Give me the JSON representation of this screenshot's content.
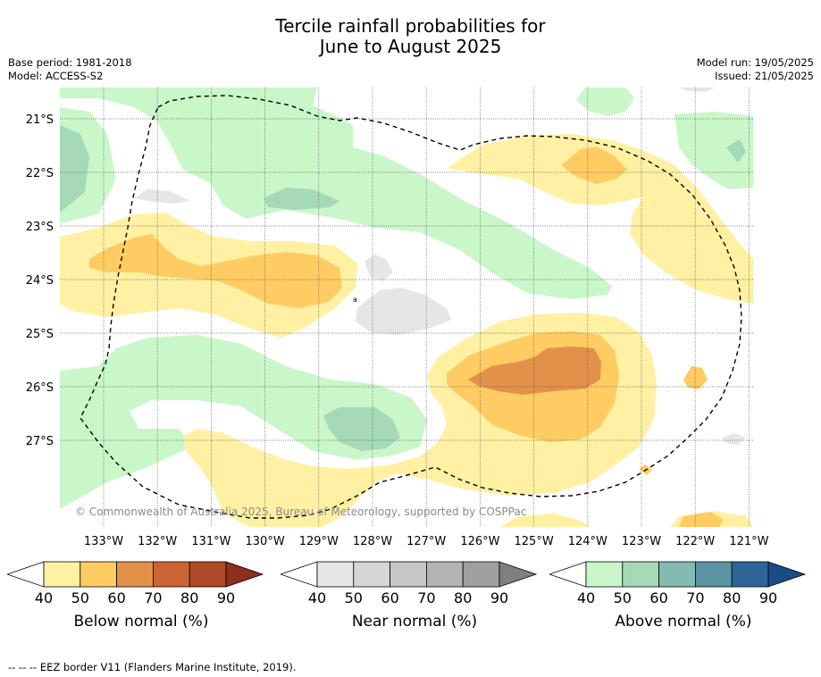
{
  "title_line1": "Tercile rainfall probabilities for",
  "title_line2": "June to August 2025",
  "base_period": "Base period: 1981-2018",
  "model": "Model: ACCESS-S2",
  "model_run": "Model run: 19/05/2025",
  "issued": "Issued: 21/05/2025",
  "copyright": "© Commonwealth of Australia 2025, Bureau of Meteorology, supported by COSPPac",
  "footnote": "--  --  -- EEZ border V11 (Flanders Marine Institute, 2019).",
  "lat_labels": [
    "21°S",
    "22°S",
    "23°S",
    "24°S",
    "25°S",
    "26°S",
    "27°S"
  ],
  "lon_labels": [
    "133°W",
    "132°W",
    "131°W",
    "130°W",
    "129°W",
    "128°W",
    "127°W",
    "126°W",
    "125°W",
    "124°W",
    "123°W",
    "122°W",
    "121°W"
  ],
  "colorbars": [
    {
      "name": "below",
      "label": "Below normal (%)",
      "ticks": [
        "40",
        "50",
        "60",
        "70",
        "80",
        "90"
      ],
      "colors": [
        "#fff0a3",
        "#fecc62",
        "#e1914a",
        "#cb6432",
        "#ae4a27",
        "#8e2e1c"
      ]
    },
    {
      "name": "near",
      "label": "Near normal (%)",
      "ticks": [
        "40",
        "50",
        "60",
        "70",
        "80",
        "90"
      ],
      "colors": [
        "#e6e6e6",
        "#d6d6d6",
        "#c6c6c6",
        "#b3b3b3",
        "#9f9f9f",
        "#7f7f7f"
      ]
    },
    {
      "name": "above",
      "label": "Above normal (%)",
      "ticks": [
        "40",
        "50",
        "60",
        "70",
        "80",
        "90"
      ],
      "colors": [
        "#c9f7c9",
        "#a6d9b8",
        "#84bab2",
        "#5a94a2",
        "#2f6497",
        "#1a4b84"
      ]
    }
  ]
}
